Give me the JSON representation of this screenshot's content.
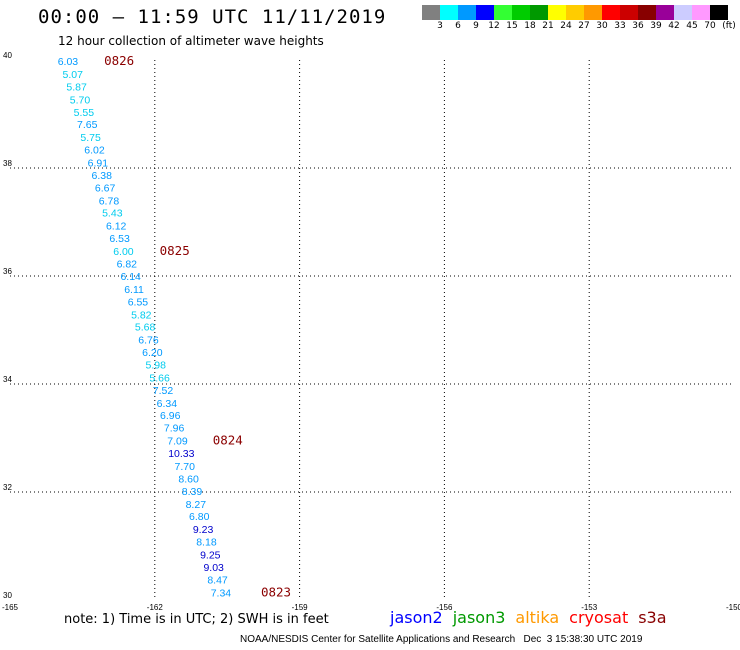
{
  "header": {
    "title": "00:00 – 11:59 UTC 11/11/2019",
    "subtitle": "12 hour collection of altimeter wave heights"
  },
  "legend": {
    "colors": [
      "#808080",
      "#00ffff",
      "#0099ff",
      "#0000ff",
      "#33ff33",
      "#00cc00",
      "#009900",
      "#ffff00",
      "#ffcc00",
      "#ff9900",
      "#ff0000",
      "#cc0000",
      "#880000",
      "#990099",
      "#ccccff",
      "#ff99ff",
      "#000000"
    ],
    "ticks": [
      "3",
      "6",
      "9",
      "12",
      "15",
      "18",
      "21",
      "24",
      "27",
      "30",
      "33",
      "36",
      "39",
      "42",
      "45",
      "70"
    ],
    "unit": "(ft)"
  },
  "map": {
    "lon_range": [
      -165,
      -150
    ],
    "lat_range": [
      30,
      40
    ],
    "lon_ticks": [
      "-165",
      "-162",
      "-159",
      "-156",
      "-153",
      "-150"
    ],
    "lat_ticks": [
      "40",
      "38",
      "36",
      "34",
      "32",
      "30"
    ],
    "grid": "dotted"
  },
  "observations": [
    {
      "v": "6.03",
      "lat": 40.0,
      "lon": -163.8,
      "c": "#0099ff"
    },
    {
      "v": "5.07",
      "lat": 39.76,
      "lon": -163.7,
      "c": "#00ccee"
    },
    {
      "v": "5.87",
      "lat": 39.53,
      "lon": -163.62,
      "c": "#00ccee"
    },
    {
      "v": "5.70",
      "lat": 39.29,
      "lon": -163.55,
      "c": "#00ccee"
    },
    {
      "v": "5.55",
      "lat": 39.06,
      "lon": -163.47,
      "c": "#00ccee"
    },
    {
      "v": "7.65",
      "lat": 38.83,
      "lon": -163.4,
      "c": "#0099ff"
    },
    {
      "v": "5.75",
      "lat": 38.59,
      "lon": -163.33,
      "c": "#00ccee"
    },
    {
      "v": "6.02",
      "lat": 38.36,
      "lon": -163.25,
      "c": "#0099ff"
    },
    {
      "v": "6.91",
      "lat": 38.12,
      "lon": -163.18,
      "c": "#0099ff"
    },
    {
      "v": "6.38",
      "lat": 37.89,
      "lon": -163.1,
      "c": "#0099ff"
    },
    {
      "v": "6.67",
      "lat": 37.66,
      "lon": -163.03,
      "c": "#0099ff"
    },
    {
      "v": "6.78",
      "lat": 37.42,
      "lon": -162.95,
      "c": "#0099ff"
    },
    {
      "v": "5.43",
      "lat": 37.19,
      "lon": -162.88,
      "c": "#00ccee"
    },
    {
      "v": "6.12",
      "lat": 36.95,
      "lon": -162.8,
      "c": "#0099ff"
    },
    {
      "v": "6.53",
      "lat": 36.72,
      "lon": -162.73,
      "c": "#0099ff"
    },
    {
      "v": "6.00",
      "lat": 36.48,
      "lon": -162.65,
      "c": "#00ccee"
    },
    {
      "v": "6.82",
      "lat": 36.25,
      "lon": -162.58,
      "c": "#0099ff"
    },
    {
      "v": "6.14",
      "lat": 36.02,
      "lon": -162.5,
      "c": "#0099ff"
    },
    {
      "v": "6.11",
      "lat": 35.78,
      "lon": -162.43,
      "c": "#0099ff"
    },
    {
      "v": "6.55",
      "lat": 35.55,
      "lon": -162.35,
      "c": "#0099ff"
    },
    {
      "v": "5.82",
      "lat": 35.31,
      "lon": -162.28,
      "c": "#00ccee"
    },
    {
      "v": "5.68",
      "lat": 35.08,
      "lon": -162.2,
      "c": "#00ccee"
    },
    {
      "v": "6.76",
      "lat": 34.84,
      "lon": -162.13,
      "c": "#0099ff"
    },
    {
      "v": "6.20",
      "lat": 34.61,
      "lon": -162.05,
      "c": "#0099ff"
    },
    {
      "v": "5.98",
      "lat": 34.38,
      "lon": -161.98,
      "c": "#00ccee"
    },
    {
      "v": "5.66",
      "lat": 34.14,
      "lon": -161.9,
      "c": "#00ccee"
    },
    {
      "v": "7.52",
      "lat": 33.91,
      "lon": -161.83,
      "c": "#0099ff"
    },
    {
      "v": "6.34",
      "lat": 33.67,
      "lon": -161.75,
      "c": "#0099ff"
    },
    {
      "v": "6.96",
      "lat": 33.44,
      "lon": -161.68,
      "c": "#0099ff"
    },
    {
      "v": "7.96",
      "lat": 33.21,
      "lon": -161.6,
      "c": "#0099ff"
    },
    {
      "v": "7.09",
      "lat": 32.97,
      "lon": -161.53,
      "c": "#0099ff"
    },
    {
      "v": "10.33",
      "lat": 32.74,
      "lon": -161.45,
      "c": "#0000cc"
    },
    {
      "v": "7.70",
      "lat": 32.5,
      "lon": -161.38,
      "c": "#0099ff"
    },
    {
      "v": "8.60",
      "lat": 32.27,
      "lon": -161.3,
      "c": "#0099ff"
    },
    {
      "v": "8.39",
      "lat": 32.04,
      "lon": -161.23,
      "c": "#0099ff"
    },
    {
      "v": "8.27",
      "lat": 31.8,
      "lon": -161.15,
      "c": "#0099ff"
    },
    {
      "v": "6.80",
      "lat": 31.57,
      "lon": -161.08,
      "c": "#0099ff"
    },
    {
      "v": "9.23",
      "lat": 31.33,
      "lon": -161.0,
      "c": "#0000cc"
    },
    {
      "v": "8.18",
      "lat": 31.1,
      "lon": -160.93,
      "c": "#0099ff"
    },
    {
      "v": "9.25",
      "lat": 30.86,
      "lon": -160.85,
      "c": "#0000cc"
    },
    {
      "v": "9.03",
      "lat": 30.63,
      "lon": -160.78,
      "c": "#0000cc"
    },
    {
      "v": "8.47",
      "lat": 30.4,
      "lon": -160.7,
      "c": "#0099ff"
    },
    {
      "v": "7.34",
      "lat": 30.16,
      "lon": -160.63,
      "c": "#0099ff"
    }
  ],
  "pass_labels": [
    {
      "t": "0826",
      "lat": 40.0,
      "lon": -163.05
    },
    {
      "t": "0825",
      "lat": 36.48,
      "lon": -161.9
    },
    {
      "t": "0824",
      "lat": 32.97,
      "lon": -160.8
    },
    {
      "t": "0823",
      "lat": 30.16,
      "lon": -159.8
    }
  ],
  "note": "note: 1) Time is in UTC; 2) SWH is in feet",
  "satellites": [
    {
      "name": "jason2",
      "color": "#0000ff"
    },
    {
      "name": "jason3",
      "color": "#009900"
    },
    {
      "name": "altika",
      "color": "#ff9900"
    },
    {
      "name": "cryosat",
      "color": "#ff0000"
    },
    {
      "name": "s3a",
      "color": "#880000"
    }
  ],
  "footer": "NOAA/NESDIS Center for Satellite Applications and Research   Dec  3 15:38:30 UTC 2019"
}
